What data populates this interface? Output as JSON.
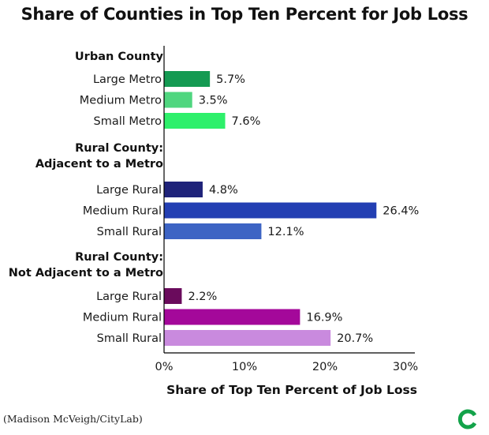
{
  "chart_data": {
    "type": "bar",
    "orientation": "horizontal",
    "title": "Share of Counties in Top Ten Percent for Job Loss",
    "xlabel": "Share of Top Ten Percent of Job Loss",
    "xlim": [
      0,
      30
    ],
    "xticks": [
      "0%",
      "10%",
      "20%",
      "30%"
    ],
    "groups": [
      {
        "label": [
          "Urban County"
        ],
        "bars": [
          {
            "category": "Large Metro",
            "value": 5.7,
            "label": "5.7%",
            "color": "#149a52"
          },
          {
            "category": "Medium Metro",
            "value": 3.5,
            "label": "3.5%",
            "color": "#4fd67f"
          },
          {
            "category": "Small Metro",
            "value": 7.6,
            "label": "7.6%",
            "color": "#2ef06b"
          }
        ]
      },
      {
        "label": [
          "Rural County:",
          "Adjacent to a Metro"
        ],
        "bars": [
          {
            "category": "Large Rural",
            "value": 4.8,
            "label": "4.8%",
            "color": "#1f237a"
          },
          {
            "category": "Medium Rural",
            "value": 26.4,
            "label": "26.4%",
            "color": "#233fb3"
          },
          {
            "category": "Small Rural",
            "value": 12.1,
            "label": "12.1%",
            "color": "#3d64c4"
          }
        ]
      },
      {
        "label": [
          "Rural County:",
          "Not Adjacent to a Metro"
        ],
        "bars": [
          {
            "category": "Large Rural",
            "value": 2.2,
            "label": "2.2%",
            "color": "#6a0b5c"
          },
          {
            "category": "Medium Rural",
            "value": 16.9,
            "label": "16.9%",
            "color": "#a4089a"
          },
          {
            "category": "Small Rural",
            "value": 20.7,
            "label": "20.7%",
            "color": "#c98ade"
          }
        ]
      }
    ],
    "grid": false,
    "legend": "none"
  },
  "source": "(Madison McVeigh/CityLab)",
  "logo": {
    "icon": "citylab-logo-icon",
    "color": "#13a34a"
  }
}
